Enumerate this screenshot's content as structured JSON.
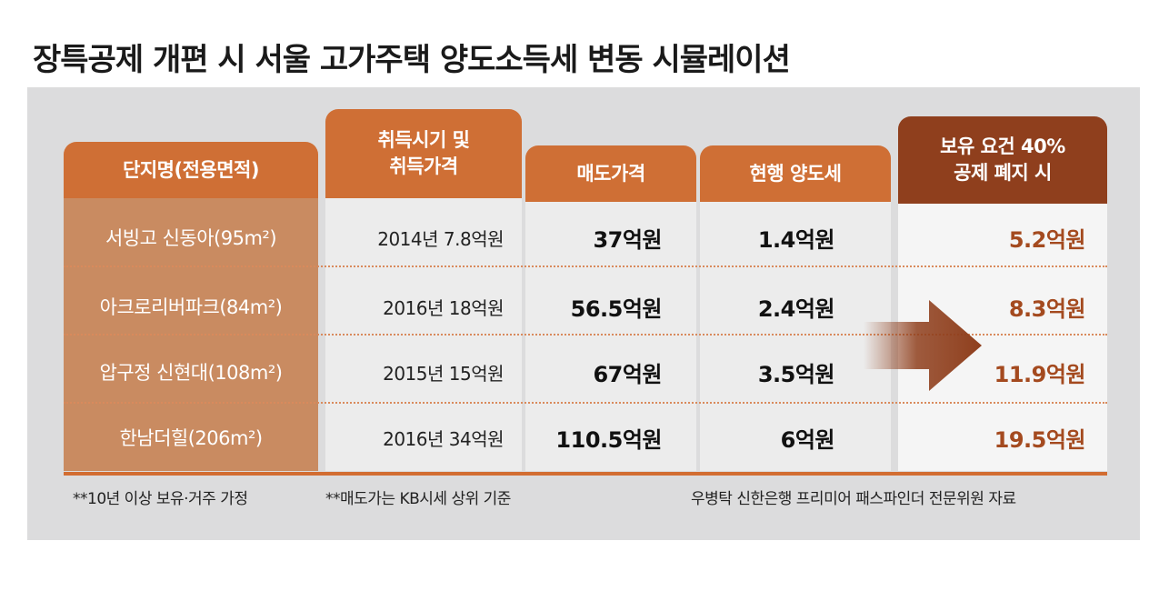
{
  "title": "장특공제 개편 시 서울 고가주택 양도소득세 변동 시뮬레이션",
  "table": {
    "headers": {
      "name": "단지명(전용면적)",
      "acquisition_line1": "취득시기 및",
      "acquisition_line2": "취득가격",
      "sale_price": "매도가격",
      "current_tax": "현행 양도세",
      "abolished_line1": "보유 요건 40%",
      "abolished_line2": "공제 폐지 시"
    },
    "rows": [
      {
        "name": "서빙고 신동아(95m²)",
        "acquisition": "2014년 7.8억원",
        "sale_price": "37억원",
        "current_tax": "1.4억원",
        "abolished_tax": "5.2억원"
      },
      {
        "name": "아크로리버파크(84m²)",
        "acquisition": "2016년 18억원",
        "sale_price": "56.5억원",
        "current_tax": "2.4억원",
        "abolished_tax": "8.3억원"
      },
      {
        "name": "압구정 신현대(108m²)",
        "acquisition": "2015년 15억원",
        "sale_price": "67억원",
        "current_tax": "3.5억원",
        "abolished_tax": "11.9억원"
      },
      {
        "name": "한남더힐(206m²)",
        "acquisition": "2016년 34억원",
        "sale_price": "110.5억원",
        "current_tax": "6억원",
        "abolished_tax": "19.5억원"
      }
    ]
  },
  "notes": {
    "note1": "**10년 이상 보유·거주 가정",
    "note2": "**매도가는 KB시세 상위 기준",
    "source": "우병탁 신한은행 프리미어 패스파인더 전문위원 자료"
  },
  "arrow_icon": "right-arrow-icon",
  "colors": {
    "header_orange": "#cf6f35",
    "header_dark": "#8f3f1d",
    "name_column": "#c98b61",
    "result_text": "#a44a1f"
  }
}
